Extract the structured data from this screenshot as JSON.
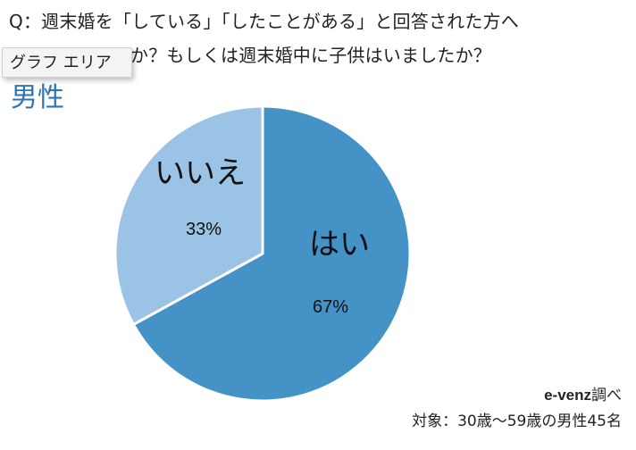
{
  "question": {
    "line1": "Q：週末婚を「している」「したことがある」と回答された方へ",
    "line2_visible": "か？もしくは週末婚中に子供はいましたか？"
  },
  "tooltip_label": "グラフ エリア",
  "chart_data": {
    "type": "pie",
    "title": "男性",
    "slices": [
      {
        "label": "はい",
        "value": 67,
        "value_label": "67%",
        "color": "#4592c6"
      },
      {
        "label": "いいえ",
        "value": 33,
        "value_label": "33%",
        "color": "#9ac3e6"
      }
    ]
  },
  "source": {
    "brand": "e-venz",
    "suffix": "調べ"
  },
  "footnote": "対象：30歳～59歳の男性45名"
}
